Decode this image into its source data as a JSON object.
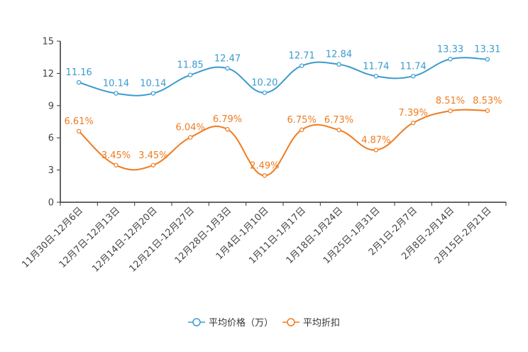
{
  "chart_data": {
    "type": "line",
    "categories": [
      "11月30日-12月6日",
      "12月7日-12月13日",
      "12月14日-12月20日",
      "12月21日-12月27日",
      "12月28日-1月3日",
      "1月4日-1月10日",
      "1月11日-1月17日",
      "1月18日-1月24日",
      "1月25日-1月31日",
      "2月1日-2月7日",
      "2月8日-2月14日",
      "2月15日-2月21日"
    ],
    "series": [
      {
        "name": "平均价格（万）",
        "color": "#3a9bcf",
        "values": [
          11.16,
          10.14,
          10.14,
          11.85,
          12.47,
          10.2,
          12.71,
          12.84,
          11.74,
          11.74,
          13.33,
          13.31
        ],
        "labels": [
          "11.16",
          "10.14",
          "10.14",
          "11.85",
          "12.47",
          "10.20",
          "12.71",
          "12.84",
          "11.74",
          "11.74",
          "13.33",
          "13.31"
        ]
      },
      {
        "name": "平均折扣",
        "color": "#f07b1e",
        "values": [
          6.61,
          3.45,
          3.45,
          6.04,
          6.79,
          2.49,
          6.75,
          6.73,
          4.87,
          7.39,
          8.51,
          8.53
        ],
        "labels": [
          "6.61%",
          "3.45%",
          "3.45%",
          "6.04%",
          "6.79%",
          "2.49%",
          "6.75%",
          "6.73%",
          "4.87%",
          "7.39%",
          "8.51%",
          "8.53%"
        ]
      }
    ],
    "yticks": [
      "0",
      "3",
      "6",
      "9",
      "12",
      "15"
    ],
    "ylim": [
      0,
      15
    ],
    "legend_position": "bottom-center"
  }
}
